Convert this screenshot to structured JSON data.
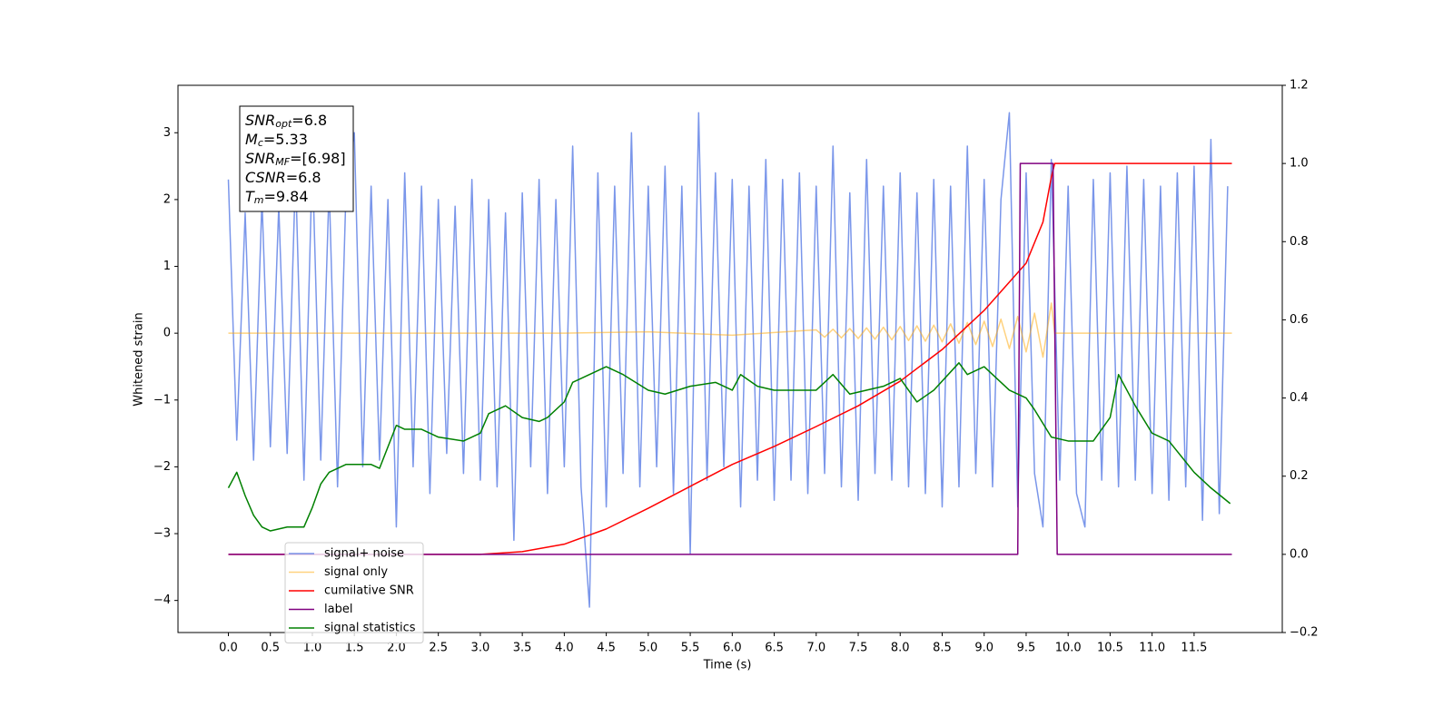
{
  "chart_data": {
    "type": "line",
    "xlabel": "Time (s)",
    "ylabel": "Whitened strain",
    "xlim": [
      -0.6,
      12.55
    ],
    "ylim": [
      -4.48,
      3.71
    ],
    "y2lim": [
      -0.2,
      1.2
    ],
    "xticks": [
      {
        "value": 0,
        "label": "0.0"
      },
      0.5,
      {
        "value": 1,
        "label": "1.0"
      },
      1.5,
      {
        "value": 2,
        "label": "2.0"
      },
      2.5,
      {
        "value": 3,
        "label": "3.0"
      },
      3.5,
      {
        "value": 4,
        "label": "4.0"
      },
      4.5,
      {
        "value": 5,
        "label": "5.0"
      },
      5.5,
      {
        "value": 6,
        "label": "6.0"
      },
      6.5,
      {
        "value": 7,
        "label": "7.0"
      },
      7.5,
      {
        "value": 8,
        "label": "8.0"
      },
      8.5,
      {
        "value": 9,
        "label": "9.0"
      },
      9.5,
      {
        "value": 10,
        "label": "10.0"
      },
      10.5,
      {
        "value": 11,
        "label": "11.0"
      },
      11.5
    ],
    "yticks": [
      {
        "value": -4,
        "label": "−4"
      },
      {
        "value": -3,
        "label": "−3"
      },
      {
        "value": -2,
        "label": "−2"
      },
      {
        "value": -1,
        "label": "−1"
      },
      0,
      1,
      2,
      3
    ],
    "y2ticks": [
      {
        "value": -0.2,
        "label": "−0.2"
      },
      {
        "value": 0,
        "label": "0.0"
      },
      0.2,
      0.4,
      0.6,
      0.8,
      {
        "value": 1,
        "label": "1.0"
      },
      1.2
    ],
    "annotations": [
      {
        "base": "SNR",
        "sub": "opt",
        "rest": "=6.8"
      },
      {
        "base": "M",
        "sub": "c",
        "rest": "=5.33"
      },
      {
        "base": "SNR",
        "sub": "MF",
        "rest": "=[6.98]"
      },
      {
        "base": "CSNR",
        "rest": "=6.8"
      },
      {
        "base": "T",
        "sub": "m",
        "rest": "=9.84"
      }
    ],
    "legend": "lower left",
    "series": [
      {
        "name": "signal+ noise",
        "color": "#4169e1",
        "opacity": 0.7,
        "axis": "y",
        "x": [
          0.0,
          0.1,
          0.2,
          0.3,
          0.4,
          0.5,
          0.6,
          0.7,
          0.8,
          0.9,
          1.0,
          1.1,
          1.2,
          1.3,
          1.4,
          1.5,
          1.6,
          1.7,
          1.8,
          1.9,
          2.0,
          2.1,
          2.2,
          2.3,
          2.4,
          2.5,
          2.6,
          2.7,
          2.8,
          2.9,
          3.0,
          3.1,
          3.2,
          3.3,
          3.4,
          3.5,
          3.6,
          3.7,
          3.8,
          3.9,
          4.0,
          4.1,
          4.2,
          4.3,
          4.4,
          4.5,
          4.6,
          4.7,
          4.8,
          4.9,
          5.0,
          5.1,
          5.2,
          5.3,
          5.4,
          5.5,
          5.6,
          5.7,
          5.8,
          5.9,
          6.0,
          6.1,
          6.2,
          6.3,
          6.4,
          6.5,
          6.6,
          6.7,
          6.8,
          6.9,
          7.0,
          7.1,
          7.2,
          7.3,
          7.4,
          7.5,
          7.6,
          7.7,
          7.8,
          7.9,
          8.0,
          8.1,
          8.2,
          8.3,
          8.4,
          8.5,
          8.6,
          8.7,
          8.8,
          8.9,
          9.0,
          9.1,
          9.2,
          9.3,
          9.4,
          9.5,
          9.6,
          9.7,
          9.8,
          9.9,
          10.0,
          10.1,
          10.2,
          10.3,
          10.4,
          10.5,
          10.6,
          10.7,
          10.8,
          10.9,
          11.0,
          11.1,
          11.2,
          11.3,
          11.4,
          11.5,
          11.6,
          11.7,
          11.8,
          11.9
        ],
        "values": [
          2.3,
          -1.6,
          1.8,
          -1.9,
          2.0,
          -1.7,
          1.9,
          -1.8,
          2.4,
          -2.2,
          2.6,
          -1.9,
          2.2,
          -2.3,
          2.1,
          3.0,
          -2.0,
          2.2,
          -1.9,
          2.0,
          -2.9,
          2.4,
          -2.0,
          2.2,
          -2.4,
          2.0,
          -1.8,
          1.9,
          -2.1,
          2.3,
          -2.2,
          2.0,
          -2.3,
          1.8,
          -3.1,
          2.1,
          -2.0,
          2.3,
          -2.4,
          2.0,
          -2.0,
          2.8,
          -2.3,
          -4.1,
          2.4,
          -2.6,
          2.2,
          -2.1,
          3.0,
          -2.3,
          2.2,
          -2.0,
          2.5,
          -2.4,
          2.2,
          -3.3,
          3.3,
          -2.2,
          2.4,
          -2.0,
          2.3,
          -2.6,
          2.2,
          -2.2,
          2.6,
          -2.5,
          2.3,
          -2.2,
          2.4,
          -2.4,
          2.2,
          -2.1,
          2.8,
          -2.3,
          2.1,
          -2.5,
          2.6,
          -2.1,
          2.2,
          -2.2,
          2.4,
          -2.3,
          2.1,
          -2.4,
          2.3,
          -2.6,
          2.2,
          -2.3,
          2.8,
          -2.1,
          2.3,
          -2.3,
          2.0,
          3.3,
          -2.6,
          2.4,
          -2.1,
          -2.9,
          2.6,
          -2.2,
          2.2,
          -2.4,
          -2.9,
          2.3,
          -2.2,
          2.4,
          -2.3,
          2.5,
          -2.2,
          2.3,
          -2.4,
          2.2,
          -2.5,
          2.4,
          -2.3,
          2.5,
          -2.8,
          2.9,
          -2.7,
          2.2
        ]
      },
      {
        "name": "signal only",
        "color": "#ffa500",
        "opacity": 0.5,
        "axis": "y",
        "x": [
          0.0,
          4.0,
          5.0,
          6.0,
          7.0,
          7.1,
          7.2,
          7.3,
          7.4,
          7.5,
          7.6,
          7.7,
          7.8,
          7.9,
          8.0,
          8.1,
          8.2,
          8.3,
          8.4,
          8.5,
          8.6,
          8.7,
          8.8,
          8.9,
          9.0,
          9.1,
          9.2,
          9.3,
          9.4,
          9.5,
          9.6,
          9.7,
          9.8,
          9.84,
          11.95
        ],
        "values": [
          0,
          0,
          0.02,
          -0.03,
          0.05,
          -0.06,
          0.06,
          -0.07,
          0.07,
          -0.08,
          0.08,
          -0.09,
          0.09,
          -0.1,
          0.1,
          -0.11,
          0.11,
          -0.12,
          0.12,
          -0.13,
          0.14,
          -0.15,
          0.16,
          -0.17,
          0.18,
          -0.2,
          0.21,
          -0.23,
          0.25,
          -0.28,
          0.3,
          -0.36,
          0.45,
          0,
          0
        ]
      },
      {
        "name": "cumilative SNR",
        "color": "#ff0000",
        "axis": "y2",
        "x": [
          0.0,
          3.0,
          3.5,
          4.0,
          4.5,
          5.0,
          5.5,
          6.0,
          6.5,
          7.0,
          7.5,
          8.0,
          8.5,
          9.0,
          9.5,
          9.7,
          9.8,
          9.84,
          11.95
        ],
        "values": [
          0,
          0,
          0.007,
          0.026,
          0.065,
          0.118,
          0.174,
          0.23,
          0.276,
          0.327,
          0.38,
          0.443,
          0.524,
          0.624,
          0.745,
          0.85,
          0.965,
          1.0,
          1.0
        ]
      },
      {
        "name": "label",
        "color": "#800080",
        "axis": "y2",
        "x": [
          0.0,
          9.4,
          9.43,
          9.82,
          9.87,
          11.95
        ],
        "values": [
          0,
          0,
          1,
          1,
          0,
          0
        ]
      },
      {
        "name": "signal statistics",
        "color": "#008000",
        "axis": "y2",
        "x": [
          0.0,
          0.1,
          0.2,
          0.3,
          0.4,
          0.5,
          0.7,
          0.9,
          1.0,
          1.1,
          1.2,
          1.4,
          1.7,
          1.8,
          2.0,
          2.1,
          2.3,
          2.5,
          2.8,
          3.0,
          3.1,
          3.3,
          3.5,
          3.7,
          3.8,
          4.0,
          4.1,
          4.3,
          4.5,
          4.7,
          5.0,
          5.2,
          5.5,
          5.8,
          6.0,
          6.1,
          6.3,
          6.5,
          7.0,
          7.2,
          7.4,
          7.8,
          8.0,
          8.2,
          8.4,
          8.7,
          8.8,
          9.0,
          9.3,
          9.5,
          9.6,
          9.8,
          10.0,
          10.3,
          10.5,
          10.6,
          10.8,
          11.0,
          11.2,
          11.5,
          11.7,
          11.93
        ],
        "values": [
          0.17,
          0.21,
          0.15,
          0.1,
          0.07,
          0.06,
          0.07,
          0.07,
          0.12,
          0.18,
          0.21,
          0.23,
          0.23,
          0.22,
          0.33,
          0.32,
          0.32,
          0.3,
          0.29,
          0.31,
          0.36,
          0.38,
          0.35,
          0.34,
          0.35,
          0.39,
          0.44,
          0.46,
          0.48,
          0.46,
          0.42,
          0.41,
          0.43,
          0.44,
          0.42,
          0.46,
          0.43,
          0.42,
          0.42,
          0.46,
          0.41,
          0.43,
          0.45,
          0.39,
          0.42,
          0.49,
          0.46,
          0.48,
          0.42,
          0.4,
          0.37,
          0.3,
          0.29,
          0.29,
          0.35,
          0.46,
          0.38,
          0.31,
          0.29,
          0.21,
          0.17,
          0.13
        ]
      }
    ]
  }
}
